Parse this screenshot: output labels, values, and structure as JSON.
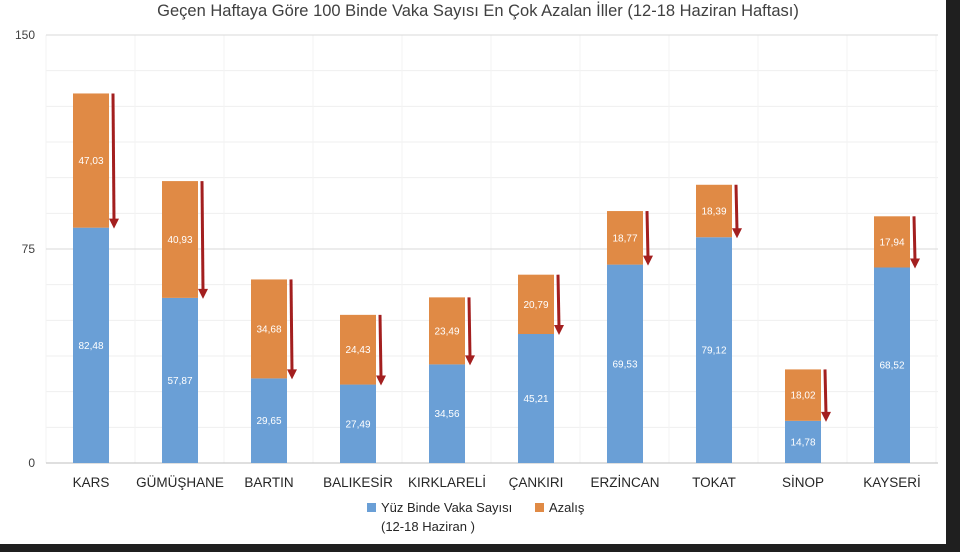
{
  "chart_data": {
    "type": "bar",
    "stacked": true,
    "title": "Geçen Haftaya Göre 100 Binde Vaka Sayısı En Çok Azalan İller (12-18 Haziran Haftası)",
    "categories": [
      "KARS",
      "GÜMÜŞHANE",
      "BARTIN",
      "BALIKESİR",
      "KIRKLARELİ",
      "ÇANKIRI",
      "ERZİNCAN",
      "TOKAT",
      "SİNOP",
      "KAYSERİ"
    ],
    "series": [
      {
        "name": "Yüz Binde Vaka Sayısı (12-18 Haziran )",
        "legend_lines": [
          "Yüz Binde Vaka Sayısı",
          "(12-18 Haziran )"
        ],
        "color": "#6a9fd6",
        "values": [
          82.48,
          57.87,
          29.65,
          27.49,
          34.56,
          45.21,
          69.53,
          79.12,
          14.78,
          68.52
        ],
        "labels": [
          "82,48",
          "57,87",
          "29,65",
          "27,49",
          "34,56",
          "45,21",
          "69,53",
          "79,12",
          "14,78",
          "68,52"
        ]
      },
      {
        "name": "Azalış",
        "legend_lines": [
          "Azalış"
        ],
        "color": "#e08a45",
        "values": [
          47.03,
          40.93,
          34.68,
          24.43,
          23.49,
          20.79,
          18.77,
          18.39,
          18.02,
          17.94
        ],
        "labels": [
          "47,03",
          "40,93",
          "34,68",
          "24,43",
          "23,49",
          "20,79",
          "18,77",
          "18,39",
          "18,02",
          "17,94"
        ]
      }
    ],
    "yticks": [
      0,
      75,
      150
    ],
    "ylim": [
      0,
      150
    ],
    "grid": true,
    "decrease_arrows": true,
    "arrow_color": "#a31f1f",
    "legend_position": "bottom"
  }
}
